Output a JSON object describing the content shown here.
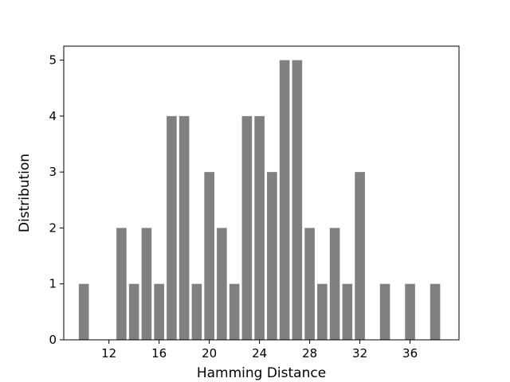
{
  "chart_data": {
    "type": "bar",
    "title": "",
    "xlabel": "Hamming Distance",
    "ylabel": "Distribution",
    "bar_color": "#808080",
    "xlim": [
      8.4,
      39.9
    ],
    "ylim": [
      0,
      5.25
    ],
    "xticks": [
      12,
      16,
      20,
      24,
      28,
      32,
      36
    ],
    "yticks": [
      0,
      1,
      2,
      3,
      4,
      5
    ],
    "grid": false,
    "legend": "none",
    "x": [
      10,
      11,
      12,
      13,
      14,
      15,
      16,
      17,
      18,
      19,
      20,
      21,
      22,
      23,
      24,
      25,
      26,
      27,
      28,
      29,
      30,
      31,
      32,
      33,
      34,
      35,
      36,
      37,
      38
    ],
    "values": [
      1,
      0,
      0,
      2,
      1,
      2,
      1,
      4,
      4,
      1,
      3,
      2,
      1,
      4,
      4,
      3,
      5,
      5,
      2,
      1,
      2,
      1,
      3,
      0,
      1,
      0,
      1,
      0,
      1
    ]
  }
}
